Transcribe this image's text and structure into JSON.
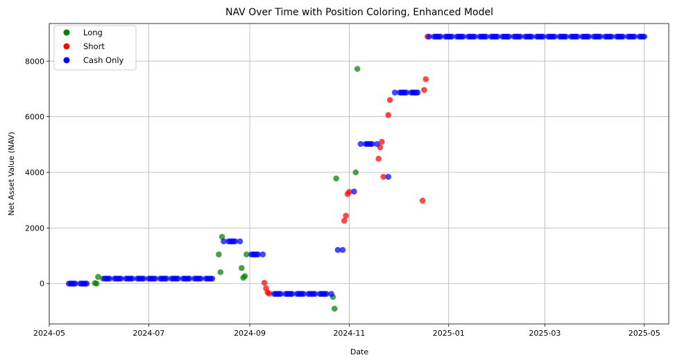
{
  "chart_data": {
    "type": "scatter",
    "title": "NAV Over Time with Position Coloring, Enhanced Model",
    "xlabel": "Date",
    "ylabel": "Net Asset Value (NAV)",
    "x_type": "date",
    "xlim": [
      "2024-05-01",
      "2025-05-16"
    ],
    "ylim": [
      -1450,
      9350
    ],
    "x_ticks": [
      "2024-05",
      "2024-07",
      "2024-09",
      "2024-11",
      "2025-01",
      "2025-03",
      "2025-05"
    ],
    "y_ticks": [
      0,
      2000,
      4000,
      6000,
      8000
    ],
    "grid": true,
    "legend_position": "upper-left",
    "series": [
      {
        "name": "Long",
        "color": "#008000",
        "points": [
          [
            "2024-05-29",
            20
          ],
          [
            "2024-05-30",
            0
          ],
          [
            "2024-05-31",
            240
          ],
          [
            "2024-06-03",
            180
          ],
          [
            "2024-08-13",
            1050
          ],
          [
            "2024-08-14",
            410
          ],
          [
            "2024-08-15",
            1680
          ],
          [
            "2024-08-27",
            560
          ],
          [
            "2024-08-28",
            210
          ],
          [
            "2024-08-29",
            270
          ],
          [
            "2024-08-30",
            1050
          ],
          [
            "2024-10-22",
            -480
          ],
          [
            "2024-10-23",
            -900
          ],
          [
            "2024-10-24",
            3780
          ],
          [
            "2024-11-05",
            4000
          ],
          [
            "2024-11-06",
            7720
          ]
        ]
      },
      {
        "name": "Short",
        "color": "#ff0000",
        "points": [
          [
            "2024-09-10",
            30
          ],
          [
            "2024-09-11",
            -170
          ],
          [
            "2024-09-12",
            -320
          ],
          [
            "2024-09-13",
            -360
          ],
          [
            "2024-10-29",
            2260
          ],
          [
            "2024-10-30",
            2440
          ],
          [
            "2024-10-31",
            3220
          ],
          [
            "2024-11-01",
            3300
          ],
          [
            "2024-11-19",
            4490
          ],
          [
            "2024-11-20",
            4900
          ],
          [
            "2024-11-21",
            5100
          ],
          [
            "2024-11-22",
            3840
          ],
          [
            "2024-11-25",
            6060
          ],
          [
            "2024-11-26",
            6600
          ],
          [
            "2024-12-16",
            2980
          ],
          [
            "2024-12-17",
            6960
          ],
          [
            "2024-12-18",
            7350
          ],
          [
            "2024-12-19",
            8880
          ]
        ]
      },
      {
        "name": "Cash Only",
        "color": "#0000ff",
        "segments": [
          {
            "start": "2024-05-13",
            "end": "2024-05-24",
            "value": 0
          },
          {
            "start": "2024-06-04",
            "end": "2024-08-09",
            "value": 180
          },
          {
            "start": "2024-08-16",
            "end": "2024-08-24",
            "value": 1520
          },
          {
            "start": "2024-08-26",
            "end": "2024-08-26",
            "value": 1520
          },
          {
            "start": "2024-09-02",
            "end": "2024-09-06",
            "value": 1050
          },
          {
            "start": "2024-09-09",
            "end": "2024-09-09",
            "value": 1050
          },
          {
            "start": "2024-09-16",
            "end": "2024-10-21",
            "value": -370
          },
          {
            "start": "2024-11-11",
            "end": "2024-11-18",
            "value": 5020
          },
          {
            "start": "2024-11-29",
            "end": "2024-12-13",
            "value": 6870
          },
          {
            "start": "2024-12-20",
            "end": "2025-05-01",
            "value": 8880
          }
        ],
        "points": [
          [
            "2024-10-25",
            1210
          ],
          [
            "2024-10-28",
            1210
          ],
          [
            "2024-11-04",
            3310
          ],
          [
            "2024-11-08",
            5020
          ],
          [
            "2024-11-25",
            3840
          ]
        ]
      }
    ]
  }
}
